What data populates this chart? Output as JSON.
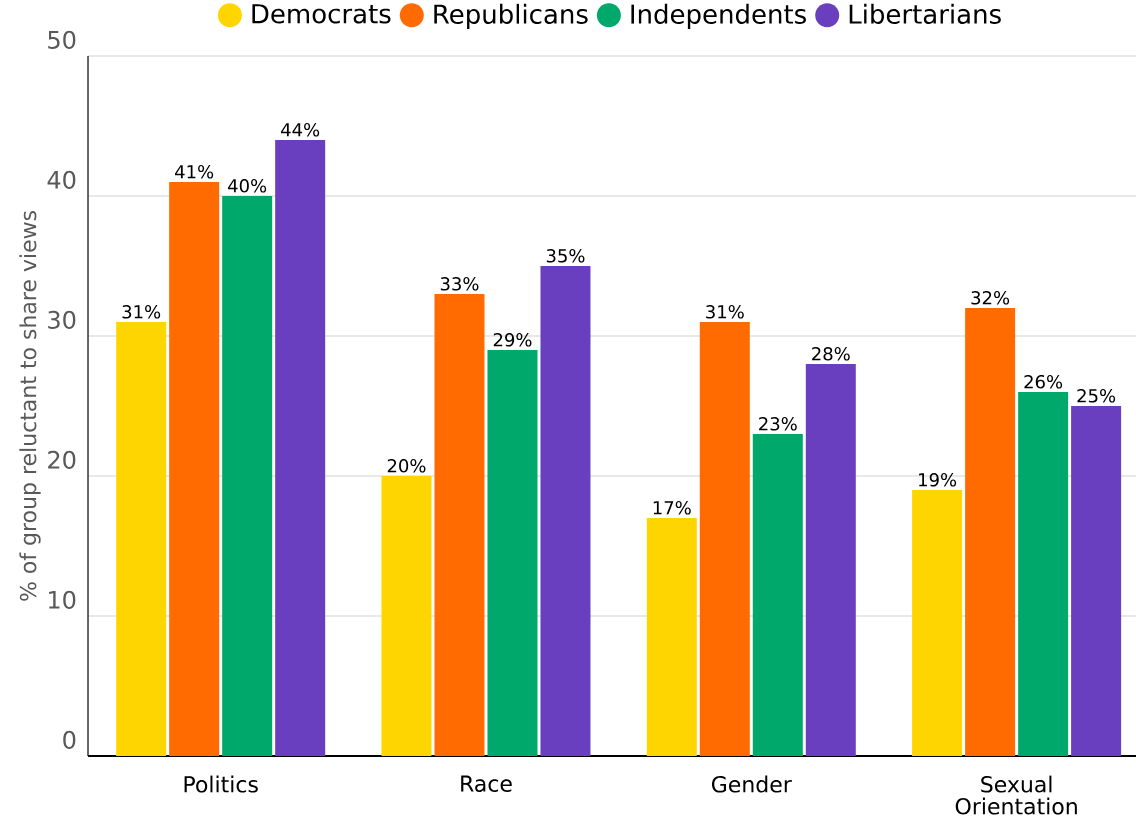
{
  "chart_data": {
    "type": "bar",
    "ylabel": "% of group reluctant to share views",
    "categories": [
      "Politics",
      "Race",
      "Gender",
      "Sexual Orientation"
    ],
    "series": [
      {
        "name": "Democrats",
        "color": "#ffd500",
        "values": [
          31,
          20,
          17,
          19
        ],
        "value_labels": [
          "31%",
          "20%",
          "17%",
          "19%"
        ]
      },
      {
        "name": "Republicans",
        "color": "#ff6b00",
        "values": [
          41,
          33,
          31,
          32
        ],
        "value_labels": [
          "41%",
          "33%",
          "31%",
          "32%"
        ]
      },
      {
        "name": "Independents",
        "color": "#00a86b",
        "values": [
          40,
          29,
          23,
          26
        ],
        "value_labels": [
          "40%",
          "29%",
          "23%",
          "26%"
        ]
      },
      {
        "name": "Libertarians",
        "color": "#6a3fbf",
        "values": [
          44,
          35,
          28,
          25
        ],
        "value_labels": [
          "44%",
          "35%",
          "28%",
          "25%"
        ]
      }
    ],
    "ylim": [
      0,
      50
    ],
    "yticks": [
      0,
      10,
      20,
      30,
      40,
      50
    ],
    "grid": "y",
    "legend": "top"
  }
}
